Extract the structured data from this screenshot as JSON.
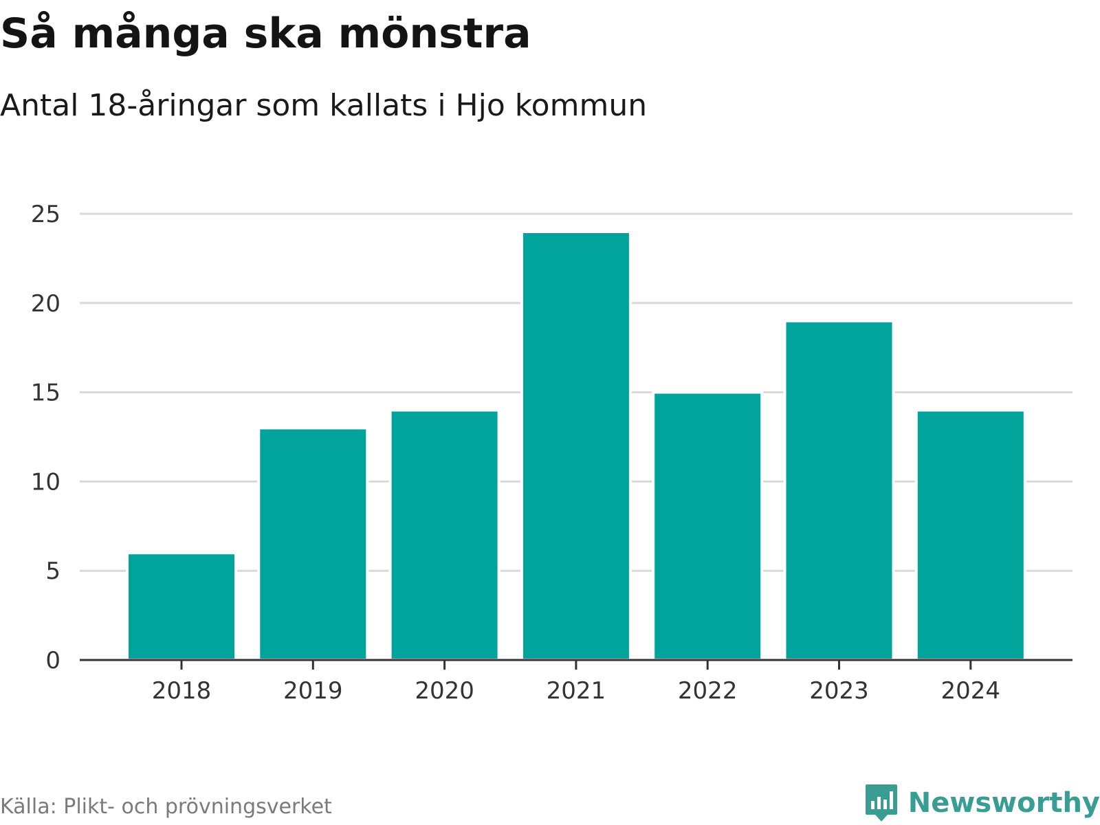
{
  "title": "Så många ska mönstra",
  "subtitle": "Antal 18-åringar som kallats i Hjo kommun",
  "source": "Källa: Plikt- och prövningsverket",
  "brand": {
    "name": "Newsworthy",
    "icon": "newsworthy-bar-chart-icon",
    "color": "#3a9d93"
  },
  "colors": {
    "bar": "#00a49a",
    "grid": "#d9d9d9",
    "axis": "#333333",
    "tick_text": "#333333"
  },
  "chart_data": {
    "type": "bar",
    "title": "Så många ska mönstra",
    "subtitle": "Antal 18-åringar som kallats i Hjo kommun",
    "categories": [
      "2018",
      "2019",
      "2020",
      "2021",
      "2022",
      "2023",
      "2024"
    ],
    "values": [
      6,
      13,
      14,
      24,
      15,
      19,
      14
    ],
    "xlabel": "",
    "ylabel": "",
    "ylim": [
      0,
      25
    ],
    "yticks": [
      0,
      5,
      10,
      15,
      20,
      25
    ],
    "grid": true,
    "legend": "none"
  }
}
